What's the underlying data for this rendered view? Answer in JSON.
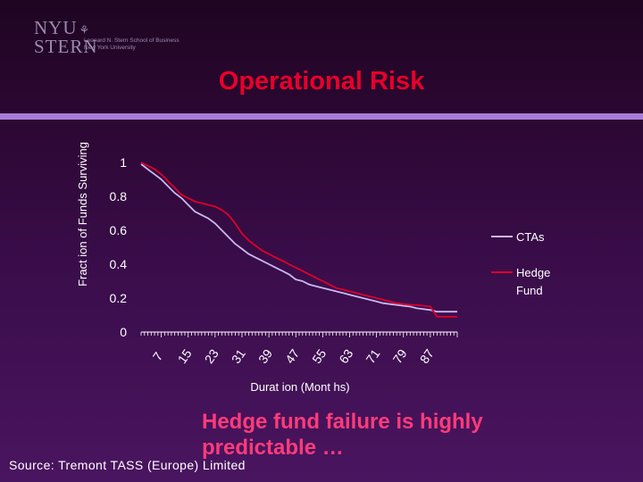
{
  "logo": {
    "mark_line1": "NYU",
    "mark_line2": "STERN",
    "subtitle_line1": "Leonard N. Stern School of Business",
    "subtitle_line2": "New York University"
  },
  "slide": {
    "title": "Operational Risk",
    "caption": "Hedge fund failure is highly predictable …",
    "source": "Source: Tremont TASS (Europe) Limited"
  },
  "colors": {
    "title": "#e8002a",
    "divider": "#a97cd9",
    "ctas_line": "#c9b8f0",
    "hedge_fund_line": "#e0002a",
    "caption": "#ff3b7a"
  },
  "chart_data": {
    "type": "line",
    "title": "",
    "xlabel": "Durat ion (Mont hs)",
    "ylabel": "Fract ion of Funds Surviving",
    "xlim": [
      1,
      95
    ],
    "ylim": [
      0,
      1
    ],
    "grid": false,
    "legend_position": "right",
    "x_tick_labels": [
      "7",
      "15",
      "23",
      "31",
      "39",
      "47",
      "55",
      "63",
      "71",
      "79",
      "87"
    ],
    "y_tick_labels": [
      "0",
      "0.2",
      "0.4",
      "0.6",
      "0.8",
      "1"
    ],
    "y_ticks": [
      0,
      0.2,
      0.4,
      0.6,
      0.8,
      1
    ],
    "x_ticks": [
      7,
      15,
      23,
      31,
      39,
      47,
      55,
      63,
      71,
      79,
      87
    ],
    "series": [
      {
        "name": "CTAs",
        "x": [
          1,
          3,
          5,
          7,
          9,
          11,
          13,
          15,
          17,
          19,
          21,
          23,
          25,
          27,
          29,
          31,
          33,
          35,
          37,
          39,
          41,
          43,
          45,
          47,
          49,
          51,
          53,
          55,
          57,
          59,
          61,
          63,
          65,
          67,
          69,
          71,
          73,
          75,
          77,
          79,
          81,
          83,
          85,
          87,
          89,
          91,
          93,
          95
        ],
        "y": [
          0.99,
          0.96,
          0.93,
          0.9,
          0.86,
          0.82,
          0.79,
          0.75,
          0.71,
          0.69,
          0.67,
          0.64,
          0.6,
          0.56,
          0.52,
          0.49,
          0.46,
          0.44,
          0.42,
          0.4,
          0.38,
          0.36,
          0.34,
          0.31,
          0.3,
          0.28,
          0.27,
          0.26,
          0.25,
          0.24,
          0.23,
          0.22,
          0.21,
          0.2,
          0.19,
          0.18,
          0.17,
          0.165,
          0.16,
          0.155,
          0.15,
          0.14,
          0.135,
          0.13,
          0.12,
          0.12,
          0.12,
          0.12
        ]
      },
      {
        "name": "Hedge Fund",
        "x": [
          1,
          3,
          5,
          7,
          9,
          11,
          13,
          15,
          17,
          19,
          21,
          23,
          25,
          27,
          29,
          31,
          33,
          35,
          37,
          39,
          41,
          43,
          45,
          47,
          49,
          51,
          53,
          55,
          57,
          59,
          61,
          63,
          65,
          67,
          69,
          71,
          73,
          75,
          77,
          79,
          81,
          83,
          85,
          87,
          89,
          91,
          93,
          95
        ],
        "y": [
          1.0,
          0.98,
          0.96,
          0.93,
          0.89,
          0.85,
          0.81,
          0.79,
          0.77,
          0.76,
          0.75,
          0.74,
          0.72,
          0.69,
          0.64,
          0.58,
          0.54,
          0.51,
          0.48,
          0.46,
          0.44,
          0.42,
          0.4,
          0.38,
          0.36,
          0.34,
          0.32,
          0.3,
          0.28,
          0.26,
          0.25,
          0.24,
          0.23,
          0.22,
          0.21,
          0.2,
          0.19,
          0.18,
          0.17,
          0.165,
          0.16,
          0.16,
          0.155,
          0.15,
          0.09,
          0.09,
          0.09,
          0.09
        ]
      }
    ]
  }
}
